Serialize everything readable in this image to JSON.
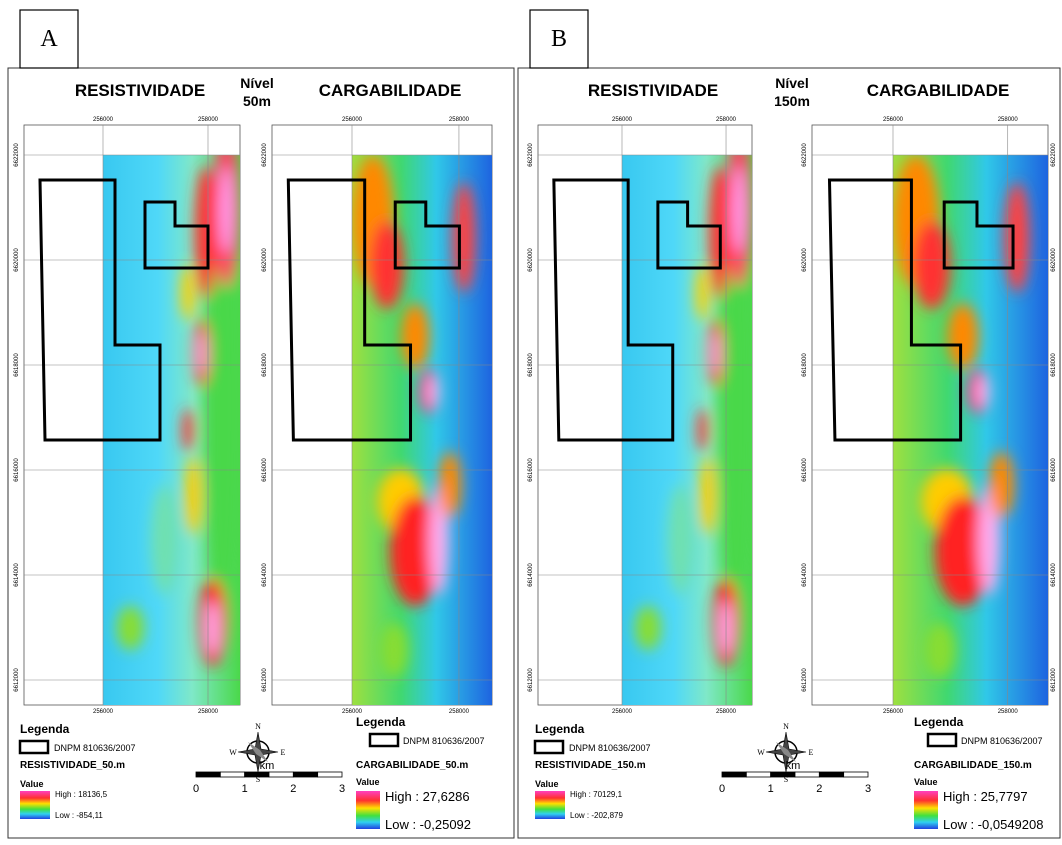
{
  "panels": [
    {
      "label": "A",
      "level": [
        "Nível",
        "50m"
      ],
      "maps": [
        {
          "title": "RESISTIVIDADE",
          "x_ticks": [
            "256000",
            "258000"
          ],
          "y_ticks": [
            "6622000",
            "6620000",
            "6618000",
            "6616000",
            "6614000",
            "6612000"
          ]
        },
        {
          "title": "CARGABILIDADE",
          "x_ticks": [
            "256000",
            "258000"
          ],
          "y_ticks": [
            "6622000",
            "6620000",
            "6618000",
            "6616000",
            "6614000",
            "6612000"
          ]
        }
      ],
      "legends": [
        {
          "title": "Legenda",
          "boundary": "DNPM 810636/2007",
          "layer": "RESISTIVIDADE_50.m",
          "value": "Value",
          "high": "High : 18136,5",
          "low": "Low : -854,11"
        },
        {
          "title": "Legenda",
          "boundary": "DNPM 810636/2007",
          "layer": "CARGABILIDADE_50.m",
          "value": "Value",
          "high": "High : 27,6286",
          "low": "Low : -0,25092"
        }
      ],
      "compass": [
        "N",
        "S",
        "E",
        "W"
      ],
      "scale": {
        "unit": "km",
        "labels": [
          "0",
          "1",
          "2",
          "3"
        ]
      }
    },
    {
      "label": "B",
      "level": [
        "Nível",
        "150m"
      ],
      "maps": [
        {
          "title": "RESISTIVIDADE",
          "x_ticks": [
            "256000",
            "258000"
          ],
          "y_ticks": [
            "6622000",
            "6620000",
            "6618000",
            "6616000",
            "6614000",
            "6612000"
          ]
        },
        {
          "title": "CARGABILIDADE",
          "x_ticks": [
            "256000",
            "258000"
          ],
          "y_ticks": [
            "6622000",
            "6620000",
            "6618000",
            "6616000",
            "6614000",
            "6612000"
          ]
        }
      ],
      "legends": [
        {
          "title": "Legenda",
          "boundary": "DNPM 810636/2007",
          "layer": "RESISTIVIDADE_150.m",
          "value": "Value",
          "high": "High : 70129,1",
          "low": "Low : -202,879"
        },
        {
          "title": "Legenda",
          "boundary": "DNPM 810636/2007",
          "layer": "CARGABILIDADE_150.m",
          "value": "Value",
          "high": "High : 25,7797",
          "low": "Low : -0,0549208"
        }
      ],
      "compass": [
        "N",
        "S",
        "E",
        "W"
      ],
      "scale": {
        "unit": "km",
        "labels": [
          "0",
          "1",
          "2",
          "3"
        ]
      }
    }
  ]
}
